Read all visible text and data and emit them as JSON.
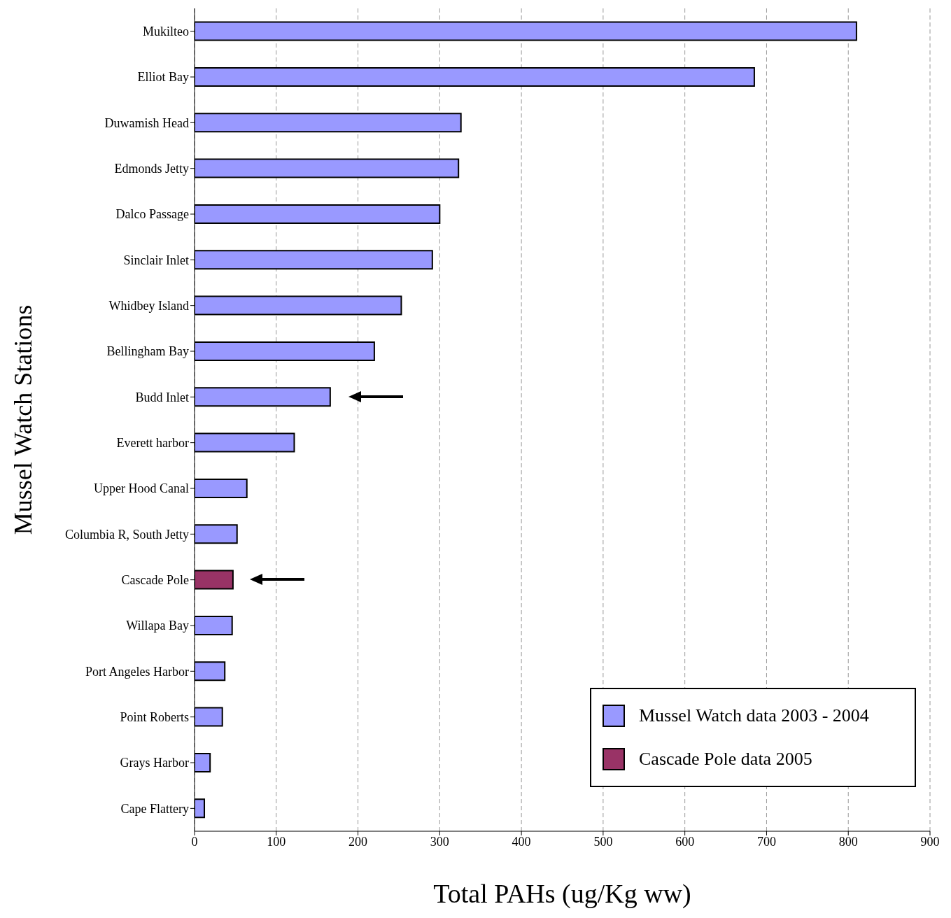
{
  "chart_data": {
    "type": "bar",
    "orientation": "horizontal",
    "stacked": true,
    "xlabel": "Total PAHs (ug/Kg ww)",
    "ylabel": "Mussel Watch Stations",
    "categories": [
      "Mukilteo",
      "Elliot Bay",
      "Duwamish Head",
      "Edmonds Jetty",
      "Dalco Passage",
      "Sinclair Inlet",
      "Whidbey Island",
      "Bellingham Bay",
      "Budd Inlet",
      "Everett harbor",
      "Upper Hood Canal",
      "Columbia R, South Jetty",
      "Cascade Pole",
      "Willapa Bay",
      "Port Angeles Harbor",
      "Point Roberts",
      "Grays Harbor",
      "Cape Flattery"
    ],
    "series": [
      {
        "name": "Mussel Watch data 2003 - 2004",
        "color": "#9999ff",
        "values": [
          810,
          685,
          326,
          323,
          300,
          291,
          253,
          220,
          166,
          122,
          64,
          52,
          null,
          46,
          37,
          34,
          19,
          12
        ]
      },
      {
        "name": "Cascade Pole data 2005",
        "color": "#993366",
        "values": [
          null,
          null,
          null,
          null,
          null,
          null,
          null,
          null,
          null,
          null,
          null,
          null,
          47,
          null,
          null,
          null,
          null,
          null
        ]
      }
    ],
    "xlim": [
      0,
      900
    ],
    "xticks": [
      0,
      100,
      200,
      300,
      400,
      500,
      600,
      700,
      800,
      900
    ],
    "grid": "x",
    "legend": "bottom right"
  }
}
